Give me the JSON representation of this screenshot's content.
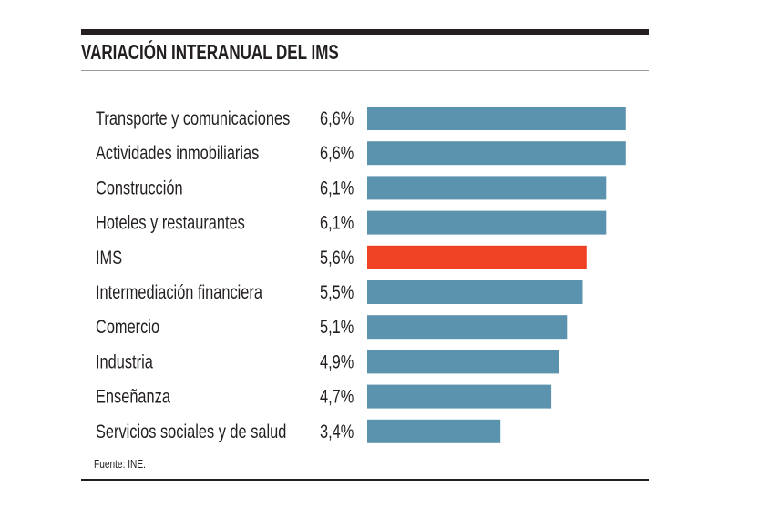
{
  "chart_data": {
    "type": "bar",
    "orientation": "horizontal",
    "title": "VARIACIÓN INTERANUAL DEL IMS",
    "categories": [
      "Transporte y comunicaciones",
      "Actividades inmobiliarias",
      "Construcción",
      "Hoteles y restaurantes",
      "IMS",
      "Intermediación financiera",
      "Comercio",
      "Industria",
      "Enseñanza",
      "Servicios sociales y de salud"
    ],
    "values": [
      6.6,
      6.6,
      6.1,
      6.1,
      5.6,
      5.5,
      5.1,
      4.9,
      4.7,
      3.4
    ],
    "value_labels": [
      "6,6%",
      "6,6%",
      "6,1%",
      "6,1%",
      "5,6%",
      "5,5%",
      "5,1%",
      "4,9%",
      "4,7%",
      "3,4%"
    ],
    "highlight": "IMS",
    "colors": {
      "bar": "#5b93ae",
      "highlight": "#ef4123"
    },
    "grid": false,
    "source": "Fuente: INE."
  }
}
